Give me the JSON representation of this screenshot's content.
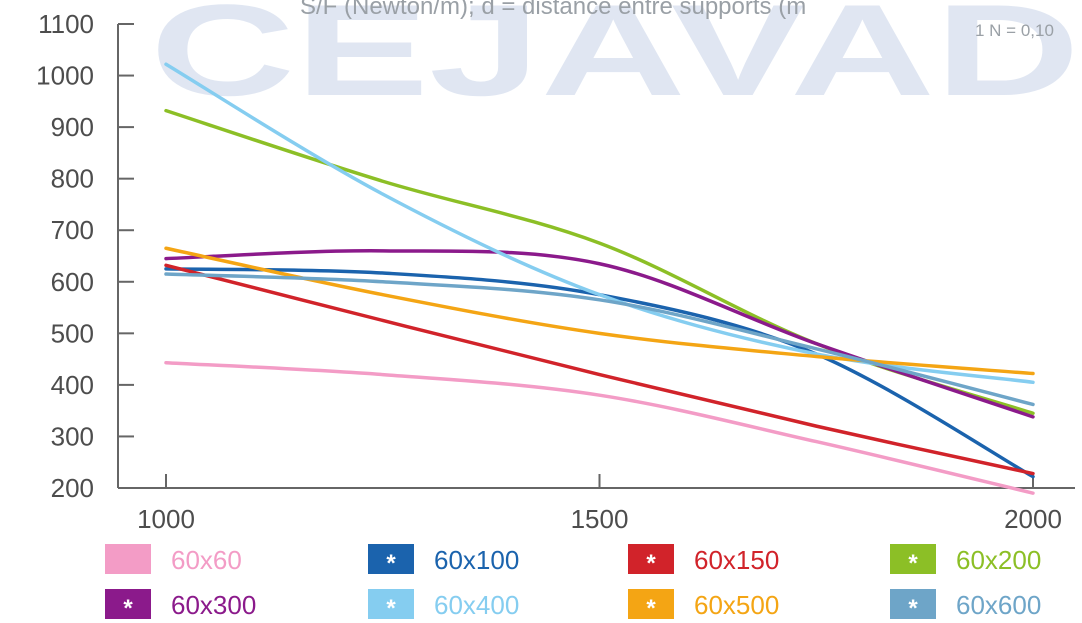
{
  "header_text": "S/F (Newton/m); d = distance entre supports (m",
  "note": "1 N = 0,10",
  "watermark": "CEJAVAD",
  "chart_data": {
    "type": "line",
    "xlabel": "",
    "ylabel": "",
    "xlim": [
      1000,
      2000
    ],
    "ylim": [
      200,
      1100
    ],
    "xticks": [
      1000,
      1500,
      2000
    ],
    "yticks": [
      200,
      300,
      400,
      500,
      600,
      700,
      800,
      900,
      1000,
      1100
    ],
    "legend_position": "bottom",
    "series": [
      {
        "name": "60x60",
        "color": "#f39cc6",
        "marker": "",
        "x": [
          1000,
          1250,
          1500,
          1750,
          2000
        ],
        "y": [
          443,
          420,
          380,
          290,
          190
        ]
      },
      {
        "name": "60x100",
        "color": "#1b63ad",
        "marker": "*",
        "x": [
          1000,
          1250,
          1500,
          1750,
          2000
        ],
        "y": [
          625,
          617,
          575,
          460,
          222
        ]
      },
      {
        "name": "60x150",
        "color": "#d1232a",
        "marker": "*",
        "x": [
          1000,
          1250,
          1500,
          1750,
          2000
        ],
        "y": [
          632,
          525,
          420,
          320,
          228
        ]
      },
      {
        "name": "60x200",
        "color": "#8cbf26",
        "marker": "*",
        "x": [
          1000,
          1250,
          1500,
          1750,
          2000
        ],
        "y": [
          932,
          795,
          675,
          480,
          345
        ]
      },
      {
        "name": "60x300",
        "color": "#8b1a8b",
        "marker": "*",
        "x": [
          1000,
          1250,
          1500,
          1750,
          2000
        ],
        "y": [
          645,
          660,
          635,
          480,
          338
        ]
      },
      {
        "name": "60x400",
        "color": "#85cdf0",
        "marker": "*",
        "x": [
          1000,
          1250,
          1500,
          1750,
          2000
        ],
        "y": [
          1022,
          770,
          575,
          460,
          405
        ]
      },
      {
        "name": "60x500",
        "color": "#f4a514",
        "marker": "*",
        "x": [
          1000,
          1250,
          1500,
          1750,
          2000
        ],
        "y": [
          665,
          575,
          500,
          455,
          422
        ]
      },
      {
        "name": "60x600",
        "color": "#6ea5c8",
        "marker": "*",
        "x": [
          1000,
          1250,
          1500,
          1750,
          2000
        ],
        "y": [
          615,
          600,
          565,
          470,
          362
        ]
      }
    ]
  }
}
